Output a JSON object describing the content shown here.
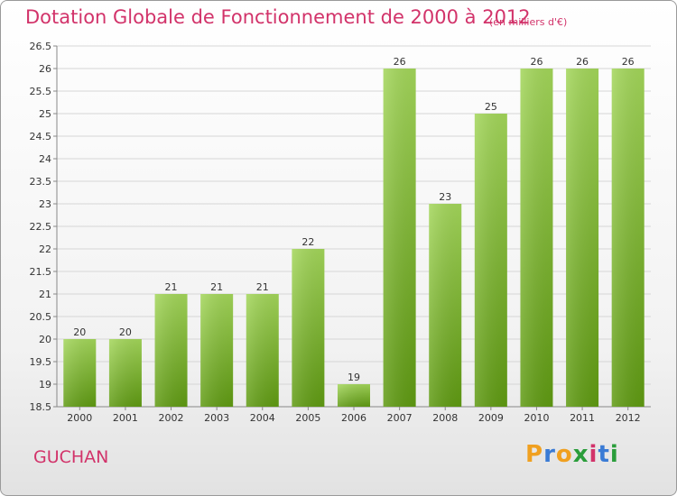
{
  "title": "Dotation Globale de Fonctionnement de 2000 à 2012",
  "subtitle": "(en milliers d'€)",
  "commune": "GUCHAN",
  "logo": {
    "letters": [
      "P",
      "r",
      "o",
      "x",
      "i",
      "t",
      "i"
    ],
    "colors": [
      "#f0a020",
      "#3a7bd5",
      "#f0a020",
      "#2a9d3a",
      "#d2336a",
      "#3a7bd5",
      "#2a9d3a"
    ]
  },
  "chart_data": {
    "type": "bar",
    "title": "Dotation Globale de Fonctionnement de 2000 à 2012",
    "subtitle": "(en milliers d'€)",
    "categories": [
      "2000",
      "2001",
      "2002",
      "2003",
      "2004",
      "2005",
      "2006",
      "2007",
      "2008",
      "2009",
      "2010",
      "2011",
      "2012"
    ],
    "values": [
      20,
      20,
      21,
      21,
      21,
      22,
      19,
      26,
      23,
      25,
      26,
      26,
      26
    ],
    "labels": [
      "20",
      "20",
      "21",
      "21",
      "21",
      "22",
      "19",
      "26",
      "23",
      "25",
      "26",
      "26",
      "26"
    ],
    "ylim": [
      18.5,
      26.5
    ],
    "yticks": [
      "18.5",
      "19",
      "19.5",
      "20",
      "20.5",
      "21",
      "21.5",
      "22",
      "22.5",
      "23",
      "23.5",
      "24",
      "24.5",
      "25",
      "25.5",
      "26",
      "26.5"
    ],
    "grid": true,
    "bar_color": "#7cbf2a"
  }
}
